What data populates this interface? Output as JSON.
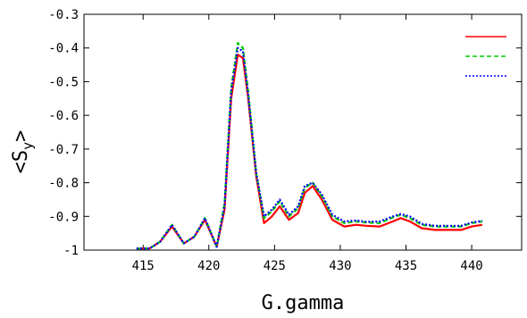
{
  "chart_data": {
    "type": "line",
    "xlabel": "G.gamma",
    "ylabel": "<S",
    "ylabel_sub": "y",
    "ylabel_close": ">",
    "xlim": [
      410.5,
      443.8
    ],
    "ylim": [
      -1,
      -0.3
    ],
    "xticks": [
      415,
      420,
      425,
      430,
      435,
      440
    ],
    "xtick_labels": [
      "415",
      "420",
      "425",
      "430",
      "435",
      "440"
    ],
    "yticks": [
      -0.3,
      -0.4,
      -0.5,
      -0.6,
      -0.7,
      -0.8,
      -0.9,
      -1
    ],
    "ytick_labels": [
      "-0.3",
      "-0.4",
      "-0.5",
      "-0.6",
      "-0.7",
      "-0.8",
      "-0.9",
      "-1"
    ],
    "legend_position": "top-right",
    "series": [
      {
        "color": "#ff0000",
        "dash": "solid",
        "x": [
          414.5,
          415.5,
          416.3,
          417.2,
          418.1,
          418.9,
          419.7,
          420.6,
          421.2,
          421.7,
          422.2,
          422.6,
          423.0,
          423.6,
          424.2,
          424.8,
          425.4,
          426.1,
          426.8,
          427.3,
          427.9,
          428.6,
          429.4,
          430.3,
          431.2,
          432.0,
          433.0,
          434.0,
          434.6,
          435.3,
          436.2,
          437.2,
          438.3,
          439.2,
          440.0,
          440.8
        ],
        "y": [
          -0.995,
          -0.995,
          -0.975,
          -0.93,
          -0.98,
          -0.96,
          -0.91,
          -0.99,
          -0.88,
          -0.55,
          -0.42,
          -0.43,
          -0.55,
          -0.78,
          -0.92,
          -0.9,
          -0.87,
          -0.91,
          -0.89,
          -0.83,
          -0.81,
          -0.85,
          -0.91,
          -0.93,
          -0.925,
          -0.928,
          -0.93,
          -0.915,
          -0.905,
          -0.915,
          -0.935,
          -0.94,
          -0.94,
          -0.94,
          -0.93,
          -0.925
        ]
      },
      {
        "color": "#00cc00",
        "dash": "dashed",
        "x": [
          414.5,
          415.5,
          416.3,
          417.2,
          418.1,
          418.9,
          419.7,
          420.6,
          421.2,
          421.7,
          422.2,
          422.6,
          423.0,
          423.6,
          424.2,
          424.8,
          425.4,
          426.1,
          426.8,
          427.3,
          427.9,
          428.6,
          429.4,
          430.3,
          431.2,
          432.0,
          433.0,
          434.0,
          434.6,
          435.3,
          436.2,
          437.2,
          438.3,
          439.2,
          440.0,
          440.8
        ],
        "y": [
          -0.995,
          -0.995,
          -0.975,
          -0.925,
          -0.98,
          -0.96,
          -0.905,
          -0.99,
          -0.86,
          -0.52,
          -0.385,
          -0.4,
          -0.53,
          -0.77,
          -0.905,
          -0.885,
          -0.855,
          -0.9,
          -0.875,
          -0.815,
          -0.8,
          -0.84,
          -0.9,
          -0.92,
          -0.915,
          -0.918,
          -0.92,
          -0.903,
          -0.895,
          -0.905,
          -0.925,
          -0.93,
          -0.93,
          -0.93,
          -0.92,
          -0.915
        ]
      },
      {
        "color": "#0000ff",
        "dash": "dotted",
        "x": [
          414.5,
          415.5,
          416.3,
          417.2,
          418.1,
          418.9,
          419.7,
          420.6,
          421.2,
          421.7,
          422.2,
          422.6,
          423.0,
          423.6,
          424.2,
          424.8,
          425.4,
          426.1,
          426.8,
          427.3,
          427.9,
          428.6,
          429.4,
          430.3,
          431.2,
          432.0,
          433.0,
          434.0,
          434.6,
          435.3,
          436.2,
          437.2,
          438.3,
          439.2,
          440.0,
          440.8
        ],
        "y": [
          -0.995,
          -0.995,
          -0.975,
          -0.925,
          -0.98,
          -0.96,
          -0.905,
          -0.99,
          -0.87,
          -0.53,
          -0.4,
          -0.41,
          -0.54,
          -0.77,
          -0.9,
          -0.88,
          -0.85,
          -0.895,
          -0.87,
          -0.81,
          -0.8,
          -0.835,
          -0.895,
          -0.915,
          -0.912,
          -0.916,
          -0.915,
          -0.9,
          -0.893,
          -0.9,
          -0.922,
          -0.928,
          -0.928,
          -0.928,
          -0.918,
          -0.913
        ]
      }
    ]
  }
}
